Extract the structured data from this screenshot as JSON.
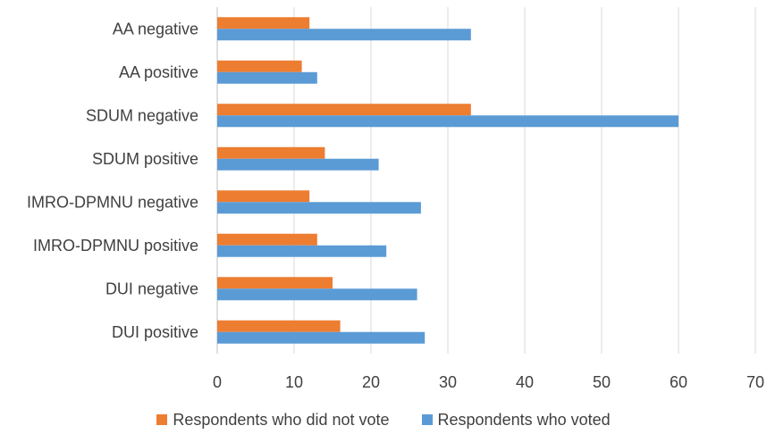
{
  "chart_data": {
    "type": "bar",
    "orientation": "horizontal",
    "categories": [
      "DUI positive",
      "DUI negative",
      "IMRO-DPMNU positive",
      "IMRO-DPMNU negative",
      "SDUM positive",
      "SDUM negative",
      "AA positive",
      "AA negative"
    ],
    "series": [
      {
        "name": "Respondents who did not vote",
        "color": "#ED7D31",
        "values": [
          16,
          15,
          13,
          12,
          14,
          33,
          11,
          12
        ]
      },
      {
        "name": "Respondents who voted",
        "color": "#5B9BD5",
        "values": [
          27,
          26,
          22,
          26.5,
          21,
          60,
          13,
          33
        ]
      }
    ],
    "xticks": [
      "0",
      "10",
      "20",
      "30",
      "40",
      "50",
      "60",
      "70"
    ],
    "xlim": [
      0,
      70
    ],
    "grid": "vertical",
    "legend_position": "bottom",
    "title": "",
    "xlabel": "",
    "ylabel": ""
  }
}
